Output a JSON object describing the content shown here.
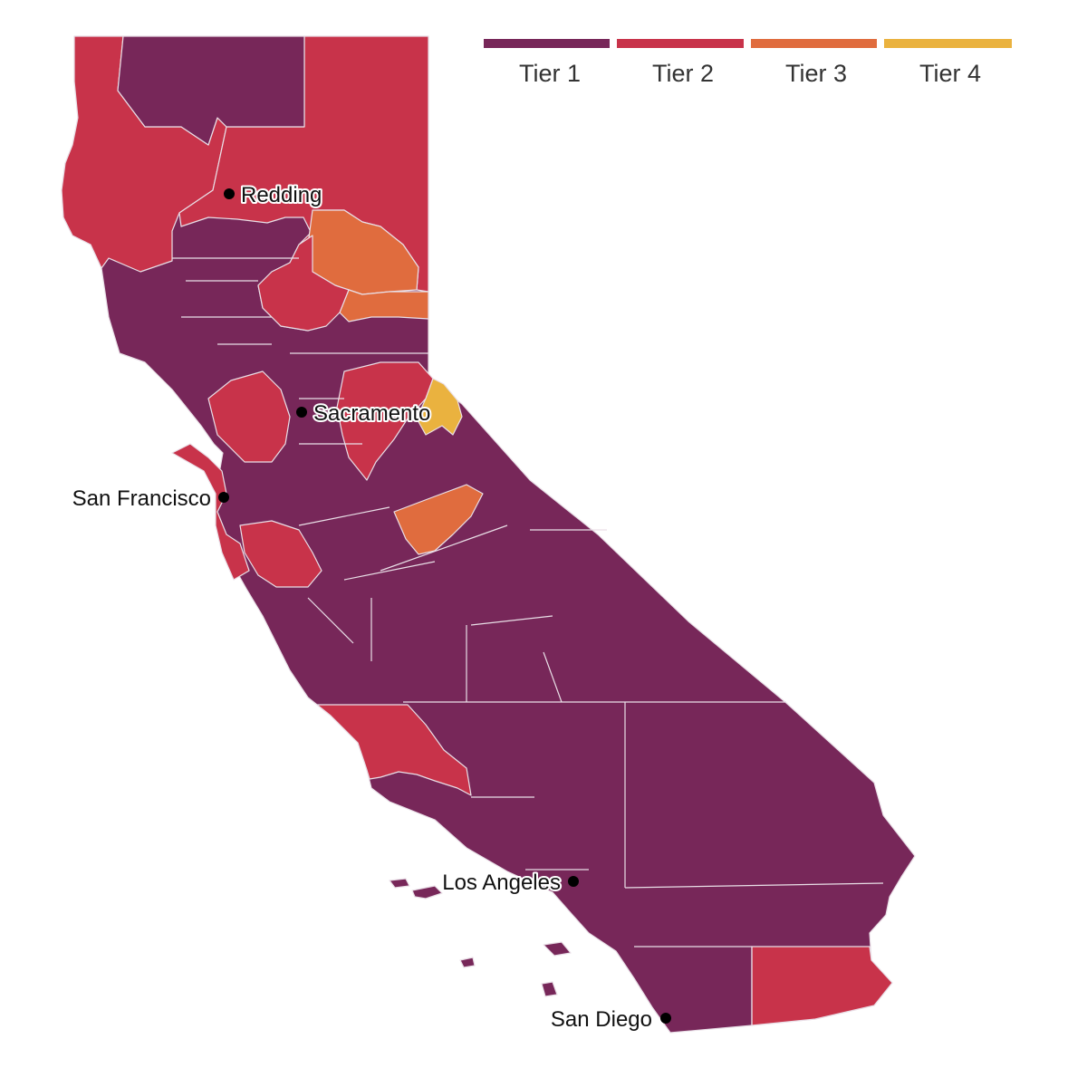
{
  "colors": {
    "tier1": "#772759",
    "tier2": "#c8334a",
    "tier3": "#e06c3e",
    "tier4": "#eab23f",
    "county_border": "#e9dfe7",
    "city_dot": "#000000"
  },
  "legend": [
    {
      "label": "Tier 1",
      "tier": 1
    },
    {
      "label": "Tier 2",
      "tier": 2
    },
    {
      "label": "Tier 3",
      "tier": 3
    },
    {
      "label": "Tier 4",
      "tier": 4
    }
  ],
  "cities": [
    {
      "name": "Redding"
    },
    {
      "name": "Sacramento"
    },
    {
      "name": "San Francisco"
    },
    {
      "name": "Los Angeles"
    },
    {
      "name": "San Diego"
    }
  ]
}
